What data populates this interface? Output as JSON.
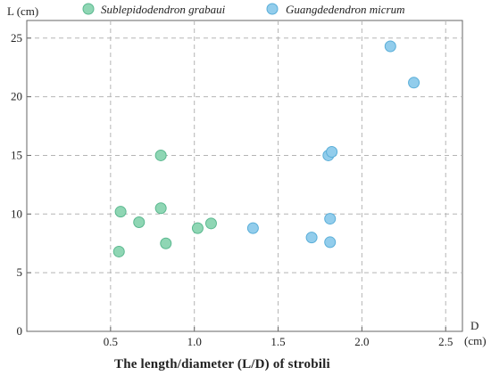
{
  "chart_data": {
    "type": "scatter",
    "title": "",
    "xlabel": "The length/diameter (L/D) of strobili",
    "x_axis_title": "D",
    "x_axis_unit": "(cm)",
    "y_axis_title": "L (cm)",
    "xlim": [
      0,
      2.6
    ],
    "ylim": [
      0,
      26.5
    ],
    "x_ticks": [
      0.5,
      1.0,
      1.5,
      2.0,
      2.5
    ],
    "x_tick_labels": [
      "0.5",
      "1.0",
      "1.5",
      "2.0",
      "2.5"
    ],
    "y_ticks": [
      0,
      5,
      10,
      15,
      20,
      25
    ],
    "y_tick_labels": [
      "0",
      "5",
      "10",
      "15",
      "20",
      "25"
    ],
    "grid": true,
    "legend_position": "top",
    "series": [
      {
        "name": "Sublepidodendron grabaui",
        "color": "#8fd6b4",
        "stroke": "#5ab88f",
        "points": [
          {
            "x": 0.55,
            "y": 6.8
          },
          {
            "x": 0.56,
            "y": 10.2
          },
          {
            "x": 0.67,
            "y": 9.3
          },
          {
            "x": 0.8,
            "y": 15.0
          },
          {
            "x": 0.8,
            "y": 10.5
          },
          {
            "x": 0.83,
            "y": 7.5
          },
          {
            "x": 1.02,
            "y": 8.8
          },
          {
            "x": 1.1,
            "y": 9.2
          }
        ]
      },
      {
        "name": "Guangdedendron micrum",
        "color": "#92cdec",
        "stroke": "#5aaed8",
        "points": [
          {
            "x": 1.35,
            "y": 8.8
          },
          {
            "x": 1.7,
            "y": 8.0
          },
          {
            "x": 1.8,
            "y": 15.0
          },
          {
            "x": 1.82,
            "y": 15.3
          },
          {
            "x": 1.81,
            "y": 9.6
          },
          {
            "x": 1.81,
            "y": 7.6
          },
          {
            "x": 2.17,
            "y": 24.3
          },
          {
            "x": 2.31,
            "y": 21.2
          }
        ]
      }
    ]
  }
}
